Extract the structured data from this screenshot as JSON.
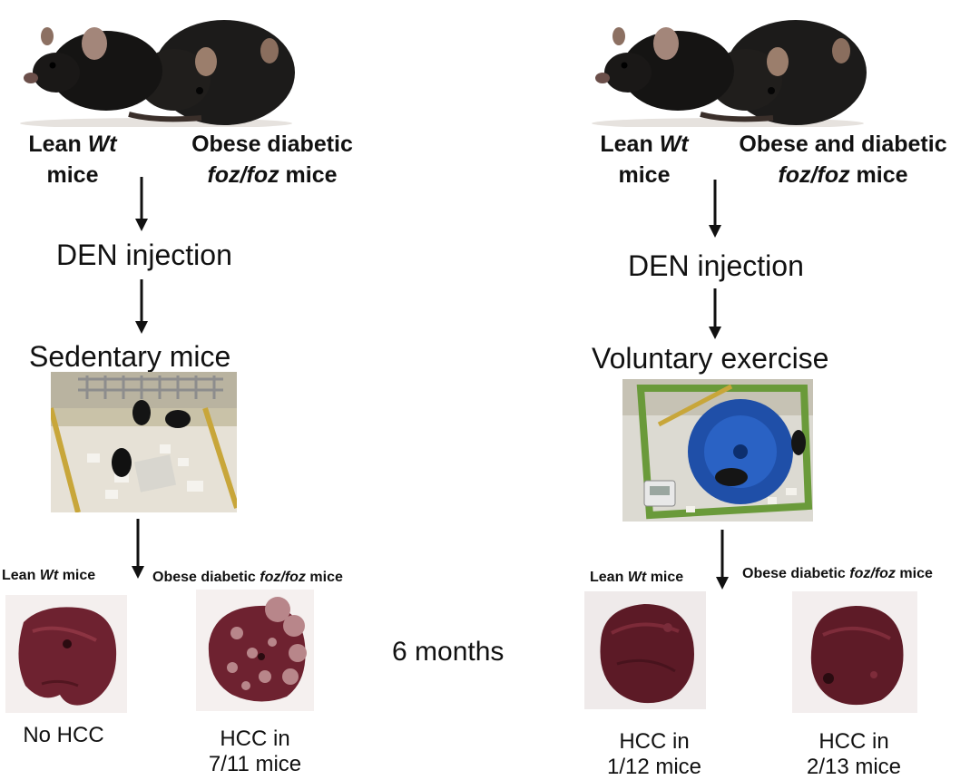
{
  "left": {
    "lean_label_1": "Lean",
    "lean_label_wt": "Wt",
    "lean_label_2": "mice",
    "obese_label_1": "Obese diabetic",
    "obese_label_foz": "foz/foz",
    "obese_label_2": "mice",
    "step_injection": "DEN injection",
    "step_condition": "Sedentary mice",
    "lean_small_1": "Lean",
    "lean_small_wt": "Wt",
    "lean_small_2": "mice",
    "obese_small_1": "Obese  diabetic",
    "obese_small_foz": "foz/foz",
    "obese_small_2": "mice",
    "result_lean_1": "No HCC",
    "result_obese_1": "HCC in",
    "result_obese_2": "7/11 mice"
  },
  "right": {
    "lean_label_1": "Lean",
    "lean_label_wt": "Wt",
    "lean_label_2": "mice",
    "obese_label_1": "Obese and diabetic",
    "obese_label_foz": "foz/foz",
    "obese_label_2": "mice",
    "step_injection": "DEN injection",
    "step_condition": "Voluntary exercise",
    "lean_small_1": "Lean",
    "lean_small_wt": "Wt",
    "lean_small_2": "mice",
    "obese_small_1": "Obese  diabetic",
    "obese_small_foz": "foz/foz",
    "obese_small_2": "mice",
    "result_lean_1": "HCC in",
    "result_lean_2": "1/12 mice",
    "result_obese_1": "HCC in",
    "result_obese_2": "2/13 mice"
  },
  "center": {
    "duration": "6 months"
  },
  "colors": {
    "mouse_fur": "#1c1b1a",
    "liver": "#6e2230",
    "liver_tumor": "#b8868a",
    "wheel_blue": "#1f4fa8",
    "cage_green": "#6a9a3a"
  }
}
